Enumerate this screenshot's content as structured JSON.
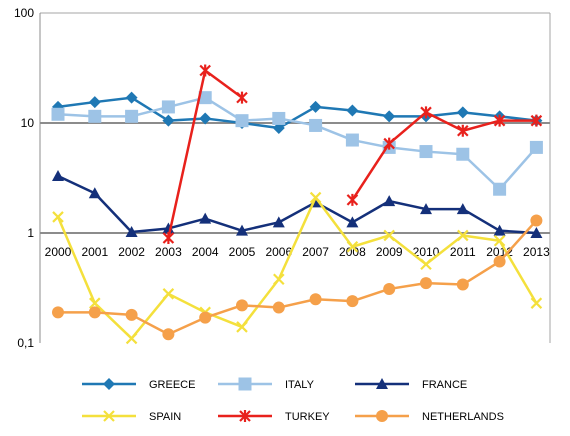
{
  "chart_data": {
    "type": "line",
    "y_scale": "log",
    "ylim": [
      0.1,
      100
    ],
    "y_ticks": [
      {
        "value": 100,
        "label": "100"
      },
      {
        "value": 10,
        "label": "10"
      },
      {
        "value": 1,
        "label": "1"
      },
      {
        "value": 0.1,
        "label": "0,1"
      }
    ],
    "categories": [
      "2000",
      "2001",
      "2002",
      "2003",
      "2004",
      "2005",
      "2006",
      "2007",
      "2008",
      "2009",
      "2010",
      "2011",
      "2012",
      "2013"
    ],
    "grid": "horizontal at 1 and 10",
    "legend_position": "bottom",
    "series": [
      {
        "name": "GREECE",
        "color": "#1F78B4",
        "marker": "diamond",
        "values": [
          14,
          15.5,
          17,
          10.5,
          11,
          10,
          9,
          14,
          13,
          11.5,
          11.5,
          12.5,
          11.5,
          10.5
        ]
      },
      {
        "name": "ITALY",
        "color": "#9DC3E6",
        "marker": "square",
        "values": [
          12,
          11.5,
          11.5,
          14,
          17,
          10.5,
          11,
          9.5,
          7,
          6,
          5.5,
          5.2,
          2.5,
          6
        ]
      },
      {
        "name": "FRANCE",
        "color": "#14307A",
        "marker": "triangle",
        "values": [
          3.3,
          2.3,
          1.02,
          1.1,
          1.35,
          1.05,
          1.25,
          1.9,
          1.25,
          1.95,
          1.65,
          1.65,
          1.05,
          1.0
        ]
      },
      {
        "name": "SPAIN",
        "color": "#F4E03C",
        "marker": "x",
        "values": [
          1.4,
          0.23,
          0.11,
          0.28,
          0.19,
          0.14,
          0.38,
          2.1,
          0.75,
          0.95,
          0.52,
          0.95,
          0.85,
          0.23
        ]
      },
      {
        "name": "TURKEY",
        "color": "#E8211C",
        "marker": "star",
        "values": [
          null,
          null,
          null,
          0.9,
          30,
          17,
          null,
          null,
          2,
          6.5,
          12.5,
          8.5,
          10.5,
          10.5
        ]
      },
      {
        "name": "NETHERLANDS",
        "color": "#F5A04A",
        "marker": "circle",
        "values": [
          0.19,
          0.19,
          0.18,
          0.12,
          0.17,
          0.22,
          0.21,
          0.25,
          0.24,
          0.31,
          0.35,
          0.34,
          0.55,
          1.3
        ]
      }
    ]
  }
}
